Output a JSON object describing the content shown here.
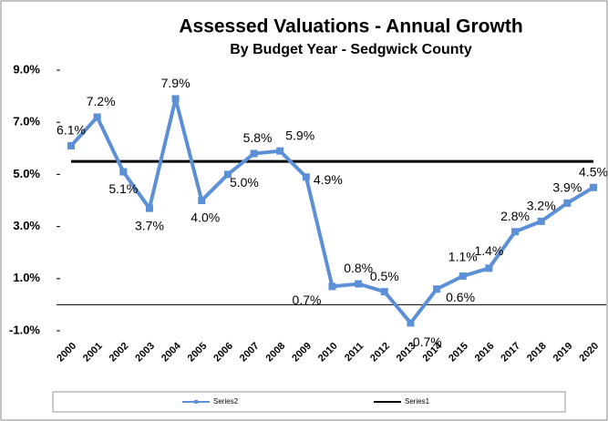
{
  "chart_data": {
    "type": "line",
    "title": "Assessed Valuations - Annual Growth",
    "subtitle": "By Budget Year - Sedgwick County",
    "categories": [
      "2000",
      "2001",
      "2002",
      "2003",
      "2004",
      "2005",
      "2006",
      "2007",
      "2008",
      "2009",
      "2010",
      "2011",
      "2012",
      "2013",
      "2014",
      "2015",
      "2016",
      "2017",
      "2018",
      "2019",
      "2020"
    ],
    "series": [
      {
        "name": "Series2",
        "color": "#5b8fd6",
        "values": [
          6.1,
          7.2,
          5.1,
          3.7,
          7.9,
          4.0,
          5.0,
          5.8,
          5.9,
          4.9,
          0.7,
          0.8,
          0.5,
          -0.7,
          0.6,
          1.1,
          1.4,
          2.8,
          3.2,
          3.9,
          4.5
        ],
        "value_labels": [
          "6.1%",
          "7.2%",
          "5.1%",
          "3.7%",
          "7.9%",
          "4.0%",
          "5.0%",
          "5.8%",
          "5.9%",
          "4.9%",
          "0.7%",
          "0.8%",
          "0.5%",
          "-0.7%",
          "0.6%",
          "1.1%",
          "1.4%",
          "2.8%",
          "3.2%",
          "3.9%",
          "4.5%"
        ]
      },
      {
        "name": "Series1",
        "color": "#000000",
        "values": [
          5.5,
          5.5,
          5.5,
          5.5,
          5.5,
          5.5,
          5.5,
          5.5,
          5.5,
          5.5,
          5.5,
          5.5,
          5.5,
          5.5,
          5.5,
          5.5,
          5.5,
          5.5,
          5.5,
          5.5,
          5.5
        ]
      }
    ],
    "ylim": [
      -1,
      9
    ],
    "yticks": [
      {
        "value": 9,
        "label": "9.0%"
      },
      {
        "value": 7,
        "label": "7.0%"
      },
      {
        "value": 5,
        "label": "5.0%"
      },
      {
        "value": 3,
        "label": "3.0%"
      },
      {
        "value": 1,
        "label": "1.0%"
      },
      {
        "value": -1,
        "label": "-1.0%"
      }
    ]
  }
}
